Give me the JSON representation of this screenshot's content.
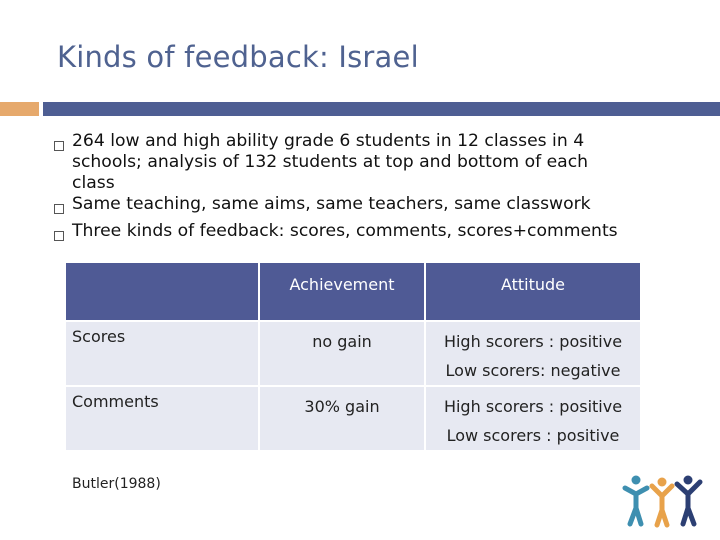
{
  "title": "Kinds of feedback: Israel",
  "colors": {
    "title": "#4f6290",
    "accent_orange": "#e6a96c",
    "accent_blue": "#4e5e93",
    "table_header": "#4f5a95",
    "table_row": "#e7e9f2"
  },
  "bullets": [
    {
      "lines": [
        "264 low and high ability grade 6 students in 12 classes in 4",
        "schools; analysis of 132 students at top and bottom of each",
        "class"
      ]
    },
    {
      "lines": [
        "Same teaching, same aims, same teachers, same classwork"
      ]
    },
    {
      "lines": [
        "Three kinds of feedback: scores, comments, scores+comments"
      ]
    }
  ],
  "table": {
    "headers": [
      "",
      "Achievement",
      "Attitude"
    ],
    "rows": [
      {
        "label": "Scores",
        "achievement": "no gain",
        "attitude": [
          "High scorers : positive",
          "Low scorers: negative"
        ]
      },
      {
        "label": "Comments",
        "achievement": "30% gain",
        "attitude": [
          "High scorers : positive",
          "Low scorers : positive"
        ]
      }
    ]
  },
  "citation": "Butler(1988)",
  "logo_icon": "people-group-icon"
}
